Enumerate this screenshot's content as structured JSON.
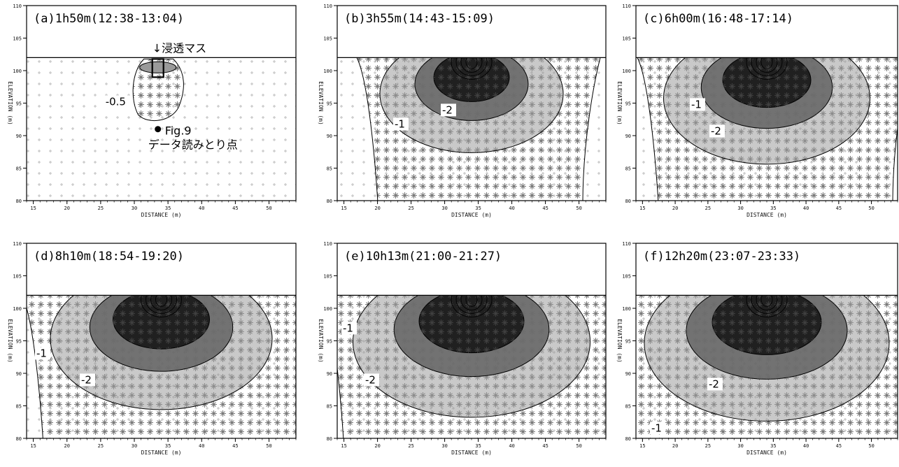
{
  "chart_data": [
    {
      "type": "heatmap",
      "title": "(a)1h50m(12:38-13:04)",
      "intensity": 0.25,
      "outer_level": "-0.5",
      "contour_labels": [
        "-0.5"
      ],
      "xlabel": "DISTANCE (m)",
      "ylabel": "ELEVATION (m)",
      "xlim": [
        14,
        54
      ],
      "ylim": [
        80,
        110
      ],
      "surface_elevation": 102,
      "x_ticks": [
        15,
        20,
        25,
        30,
        35,
        40,
        45,
        50
      ],
      "y_ticks": [
        80,
        85,
        90,
        95,
        100,
        105,
        110
      ],
      "annotations": {
        "infiltration_mass": "↓浸透マス",
        "fig9": "Fig.9",
        "read_point": "データ読みとり点",
        "read_point_xy": [
          33.5,
          91
        ]
      }
    },
    {
      "type": "heatmap",
      "title": "(b)3h55m(14:43-15:09)",
      "intensity": 0.6,
      "contour_labels": [
        "-2",
        "-1"
      ],
      "xlabel": "DISTANCE (m)",
      "ylabel": "ELEVATION (m)",
      "xlim": [
        14,
        54
      ],
      "ylim": [
        80,
        110
      ],
      "surface_elevation": 102,
      "x_ticks": [
        15,
        20,
        25,
        30,
        35,
        40,
        45,
        50
      ],
      "y_ticks": [
        80,
        85,
        90,
        95,
        100,
        105,
        110
      ]
    },
    {
      "type": "heatmap",
      "title": "(c)6h00m(16:48-17:14)",
      "intensity": 0.75,
      "contour_labels": [
        "-1",
        "-2"
      ],
      "xlabel": "DISTANCE (m)",
      "ylabel": "ELEVATION (m)",
      "xlim": [
        14,
        54
      ],
      "ylim": [
        80,
        110
      ],
      "surface_elevation": 102,
      "x_ticks": [
        15,
        20,
        25,
        30,
        35,
        40,
        45,
        50
      ],
      "y_ticks": [
        80,
        85,
        90,
        95,
        100,
        105,
        110
      ]
    },
    {
      "type": "heatmap",
      "title": "(d)8h10m(18:54-19:20)",
      "intensity": 0.85,
      "contour_labels": [
        "-1",
        "-2"
      ],
      "xlabel": "DISTANCE (m)",
      "ylabel": "ELEVATION (m)",
      "xlim": [
        14,
        54
      ],
      "ylim": [
        80,
        110
      ],
      "surface_elevation": 102,
      "x_ticks": [
        15,
        20,
        25,
        30,
        35,
        40,
        45,
        50
      ],
      "y_ticks": [
        80,
        85,
        90,
        95,
        100,
        105,
        110
      ]
    },
    {
      "type": "heatmap",
      "title": "(e)10h13m(21:00-21:27)",
      "intensity": 0.95,
      "contour_labels": [
        "-1",
        "-2"
      ],
      "xlabel": "DISTANCE (m)",
      "ylabel": "ELEVATION (m)",
      "xlim": [
        14,
        54
      ],
      "ylim": [
        80,
        110
      ],
      "surface_elevation": 102,
      "x_ticks": [
        15,
        20,
        25,
        30,
        35,
        40,
        45,
        50
      ],
      "y_ticks": [
        80,
        85,
        90,
        95,
        100,
        105,
        110
      ]
    },
    {
      "type": "heatmap",
      "title": "(f)12h20m(23:07-23:33)",
      "intensity": 1.0,
      "contour_labels": [
        "-2",
        "-1"
      ],
      "xlabel": "DISTANCE (m)",
      "ylabel": "ELEVATION (m)",
      "xlim": [
        14,
        54
      ],
      "ylim": [
        80,
        110
      ],
      "surface_elevation": 102,
      "x_ticks": [
        15,
        20,
        25,
        30,
        35,
        40,
        45,
        50
      ],
      "y_ticks": [
        80,
        85,
        90,
        95,
        100,
        105,
        110
      ]
    }
  ]
}
